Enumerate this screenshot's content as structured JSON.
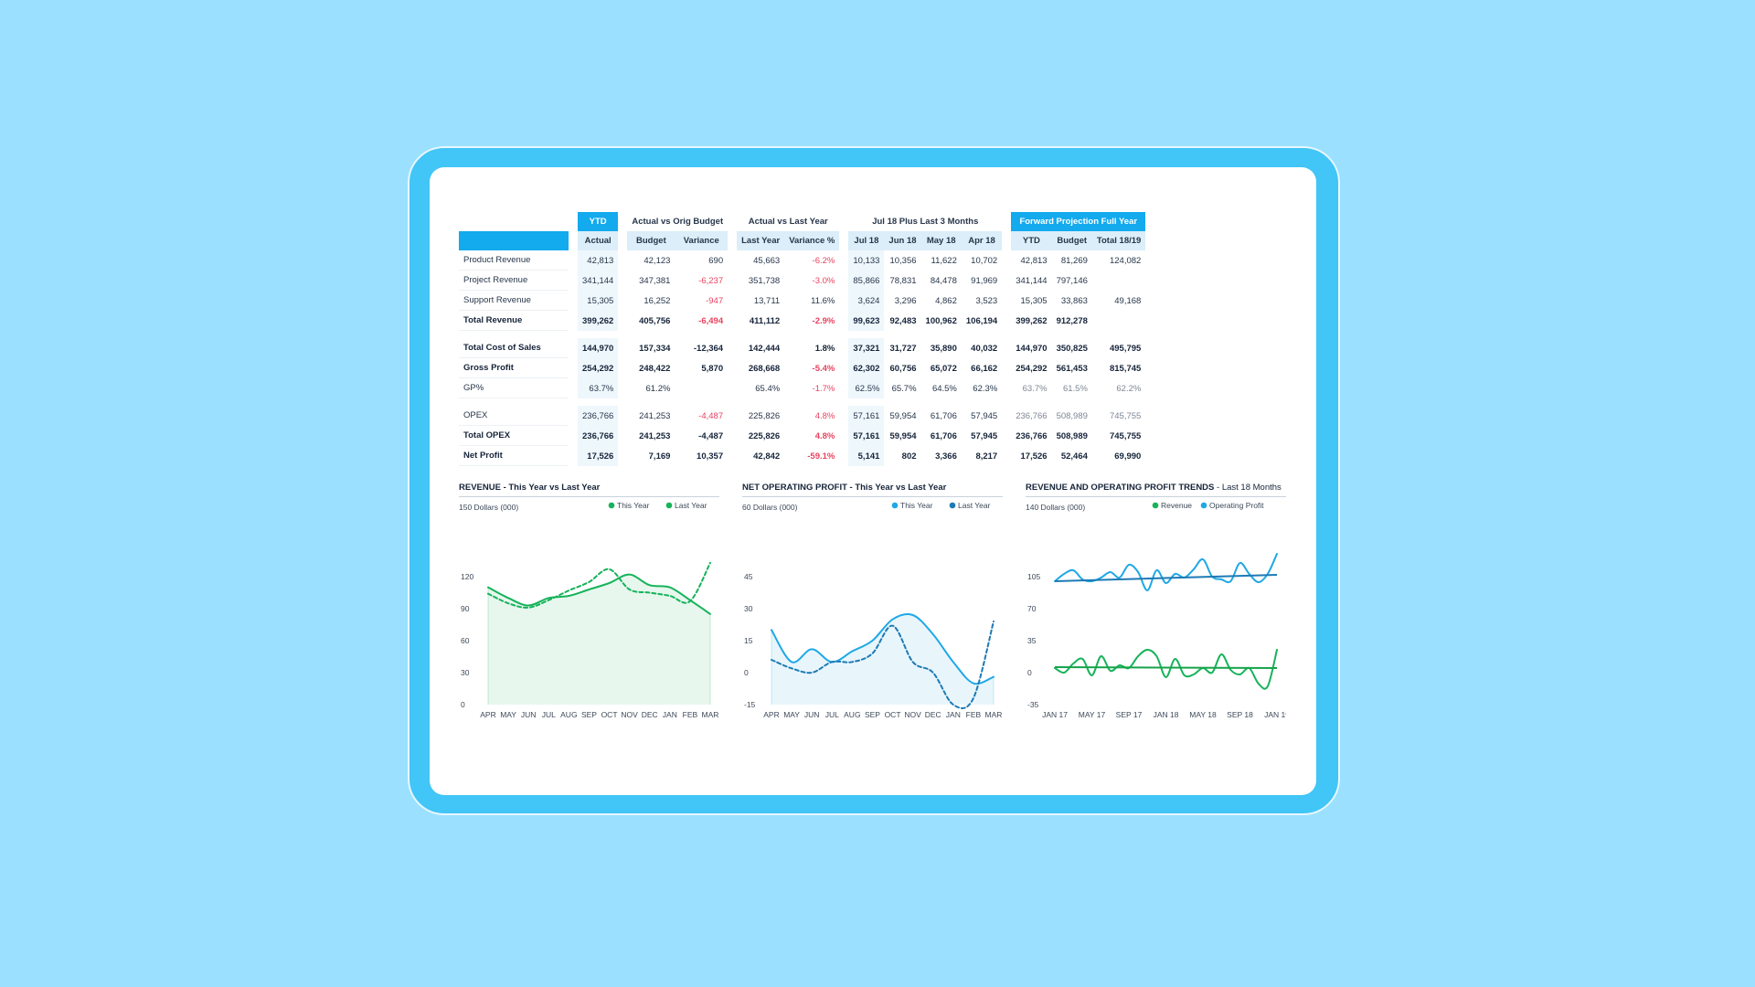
{
  "table": {
    "group_headers": [
      "YTD",
      "Actual vs Orig Budget",
      "Actual vs Last Year",
      "Jul 18 Plus Last 3 Months",
      "Forward Projection Full Year"
    ],
    "col_headers": {
      "ytd": [
        "Actual"
      ],
      "budget": [
        "Budget",
        "Variance"
      ],
      "lastyear": [
        "Last Year",
        "Variance %"
      ],
      "months": [
        "Jul 18",
        "Jun 18",
        "May 18",
        "Apr 18"
      ],
      "forward": [
        "YTD",
        "Budget",
        "Total 18/19"
      ]
    },
    "rows": [
      {
        "label": "Product Revenue",
        "cells": [
          "42,813",
          "42,123",
          "690",
          "45,663",
          "-6.2%",
          "10,133",
          "10,356",
          "11,622",
          "10,702",
          "42,813",
          "81,269",
          "124,082"
        ],
        "bold": false,
        "space_before": false
      },
      {
        "label": "Project Revenue",
        "cells": [
          "341,144",
          "347,381",
          "-6,237",
          "351,738",
          "-3.0%",
          "85,866",
          "78,831",
          "84,478",
          "91,969",
          "341,144",
          "797,146",
          ""
        ],
        "bold": false,
        "space_before": false
      },
      {
        "label": "Support Revenue",
        "cells": [
          "15,305",
          "16,252",
          "-947",
          "13,711",
          "11.6%",
          "3,624",
          "3,296",
          "4,862",
          "3,523",
          "15,305",
          "33,863",
          "49,168"
        ],
        "bold": false,
        "space_before": false
      },
      {
        "label": "Total Revenue",
        "cells": [
          "399,262",
          "405,756",
          "-6,494",
          "411,112",
          "-2.9%",
          "99,623",
          "92,483",
          "100,962",
          "106,194",
          "399,262",
          "912,278",
          ""
        ],
        "bold": true,
        "space_before": false
      },
      {
        "label": "Total Cost of Sales",
        "cells": [
          "144,970",
          "157,334",
          "-12,364",
          "142,444",
          "1.8%",
          "37,321",
          "31,727",
          "35,890",
          "40,032",
          "144,970",
          "350,825",
          "495,795"
        ],
        "bold": true,
        "space_before": true
      },
      {
        "label": "Gross Profit",
        "cells": [
          "254,292",
          "248,422",
          "5,870",
          "268,668",
          "-5.4%",
          "62,302",
          "60,756",
          "65,072",
          "66,162",
          "254,292",
          "561,453",
          "815,745"
        ],
        "bold": true,
        "space_before": false
      },
      {
        "label": "GP%",
        "cells": [
          "63.7%",
          "61.2%",
          "",
          "65.4%",
          "-1.7%",
          "62.5%",
          "65.7%",
          "64.5%",
          "62.3%",
          "63.7%",
          "61.5%",
          "62.2%"
        ],
        "bold": false,
        "space_before": false
      },
      {
        "label": "OPEX",
        "cells": [
          "236,766",
          "241,253",
          "-4,487",
          "225,826",
          "4.8%",
          "57,161",
          "59,954",
          "61,706",
          "57,945",
          "236,766",
          "508,989",
          "745,755"
        ],
        "bold": false,
        "space_before": true
      },
      {
        "label": "Total OPEX",
        "cells": [
          "236,766",
          "241,253",
          "-4,487",
          "225,826",
          "4.8%",
          "57,161",
          "59,954",
          "61,706",
          "57,945",
          "236,766",
          "508,989",
          "745,755"
        ],
        "bold": true,
        "space_before": false
      },
      {
        "label": "Net Profit",
        "cells": [
          "17,526",
          "7,169",
          "10,357",
          "42,842",
          "-59.1%",
          "5,141",
          "802",
          "3,366",
          "8,217",
          "17,526",
          "52,464",
          "69,990"
        ],
        "bold": true,
        "space_before": false
      }
    ]
  },
  "colors": {
    "background": "#9be1ff",
    "tablet": "#42c5f7",
    "header_blue": "#13aaee",
    "negative": "#e8435f",
    "green": "#16b35a",
    "light_green": "#5fd38a",
    "blue": "#1fa8e6",
    "dark_blue": "#1d7ab5"
  },
  "chart_data": [
    {
      "type": "area",
      "title": "REVENUE - This Year vs Last Year",
      "subtitle": "",
      "ylabel": "150 Dollars (000)",
      "ylim": [
        0,
        150
      ],
      "yticks": [
        0,
        30,
        60,
        90,
        120
      ],
      "categories": [
        "APR",
        "MAY",
        "JUN",
        "JUL",
        "AUG",
        "SEP",
        "OCT",
        "NOV",
        "DEC",
        "JAN",
        "FEB",
        "MAR"
      ],
      "legend": [
        "This Year",
        "Last Year"
      ],
      "legend_position": "top-right",
      "series": [
        {
          "name": "This Year",
          "values": [
            110,
            100,
            93,
            100,
            102,
            108,
            114,
            122,
            112,
            110,
            98,
            85
          ],
          "color": "#16b35a",
          "style": "solid",
          "fill": true
        },
        {
          "name": "Last Year",
          "values": [
            104,
            95,
            91,
            98,
            107,
            115,
            127,
            108,
            105,
            102,
            97,
            133
          ],
          "color": "#16b35a",
          "style": "dashed",
          "fill": false
        }
      ]
    },
    {
      "type": "area",
      "title": "NET OPERATING PROFIT - This Year vs Last Year",
      "subtitle": "",
      "ylabel": "60 Dollars (000)",
      "ylim": [
        -15,
        60
      ],
      "yticks": [
        -15,
        0,
        15,
        30,
        45
      ],
      "categories": [
        "APR",
        "MAY",
        "JUN",
        "JUL",
        "AUG",
        "SEP",
        "OCT",
        "NOV",
        "DEC",
        "JAN",
        "FEB",
        "MAR"
      ],
      "legend": [
        "This Year",
        "Last Year"
      ],
      "legend_position": "top-right",
      "series": [
        {
          "name": "This Year",
          "values": [
            20,
            5,
            11,
            5,
            10,
            15,
            25,
            27,
            18,
            5,
            -5,
            -2
          ],
          "color": "#1fa8e6",
          "style": "solid",
          "fill": true
        },
        {
          "name": "Last Year",
          "values": [
            6,
            2,
            0,
            5,
            5,
            9,
            22,
            5,
            0,
            -15,
            -12,
            24
          ],
          "color": "#1d7ab5",
          "style": "dashed",
          "fill": false
        }
      ]
    },
    {
      "type": "line",
      "title": "REVENUE AND OPERATING PROFIT TRENDS",
      "subtitle": "- Last 18 Months",
      "ylabel": "140 Dollars (000)",
      "ylim": [
        -35,
        140
      ],
      "yticks": [
        -35,
        0,
        35,
        70,
        105
      ],
      "x_labels": [
        "JAN 17",
        "MAY 17",
        "SEP 17",
        "JAN 18",
        "MAY 18",
        "SEP 18",
        "JAN 19"
      ],
      "legend": [
        "Revenue",
        "Operating Profit"
      ],
      "legend_position": "top-right",
      "series": [
        {
          "name": "Revenue",
          "values": [
            5,
            0,
            10,
            15,
            -3,
            18,
            2,
            8,
            5,
            18,
            25,
            18,
            -5,
            15,
            -3,
            -2,
            5,
            0,
            20,
            3,
            -2,
            5,
            -12,
            -15,
            25
          ],
          "color": "#16b35a",
          "trend": [
            6,
            5
          ]
        },
        {
          "name": "Operating Profit",
          "values": [
            100,
            108,
            112,
            102,
            100,
            104,
            110,
            104,
            118,
            110,
            90,
            112,
            98,
            108,
            104,
            113,
            124,
            105,
            102,
            100,
            120,
            108,
            99,
            108,
            130
          ],
          "color": "#1fa8e6",
          "trend": [
            100,
            107
          ]
        }
      ]
    }
  ]
}
